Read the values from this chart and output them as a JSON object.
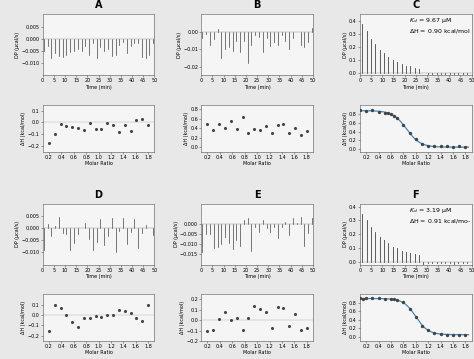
{
  "panels": [
    "A",
    "B",
    "C",
    "D",
    "E",
    "F"
  ],
  "bg_color": "#e8e8e8",
  "plot_bg": "#f5f5f5",
  "spike_color": "#444444",
  "dot_color": "#444444",
  "fit_color": "#4488bb",
  "tick_fontsize": 3.5,
  "axis_label_fontsize": 3.5,
  "panel_label_fontsize": 7,
  "annot_fontsize": 4.5,
  "C_annot": "$K_d$ = 9.67 μM\n$\\Delta$H = 0.90 kcal/mol",
  "F_annot": "$K_d$ = 3.19 μM\n$\\Delta$H = 0.91 kcal/mo-"
}
